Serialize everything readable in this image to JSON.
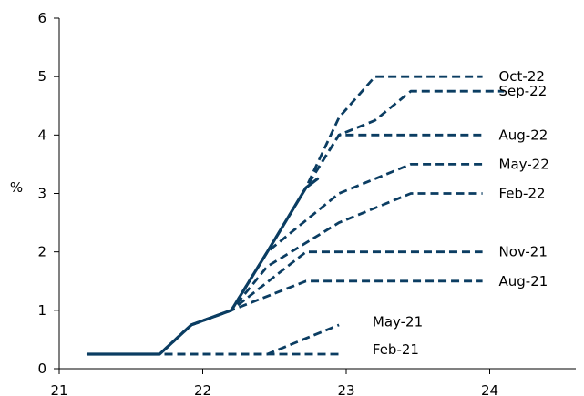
{
  "chart_data": {
    "type": "line",
    "title": "",
    "xlabel": "",
    "ylabel": "%",
    "xlim": [
      21,
      24.6
    ],
    "ylim": [
      0,
      6
    ],
    "x_ticks": [
      21,
      22,
      23,
      24
    ],
    "x_tick_labels": [
      "21",
      "22",
      "23",
      "24"
    ],
    "y_ticks": [
      0,
      1,
      2,
      3,
      4,
      5,
      6
    ],
    "y_tick_labels": [
      "0",
      "1",
      "2",
      "3",
      "4",
      "5",
      "6"
    ],
    "grid": false,
    "colors": {
      "line": "#0b3d62"
    },
    "actual": {
      "x": [
        21.2,
        21.7,
        21.92,
        22.2,
        22.45,
        22.72,
        22.8
      ],
      "y": [
        0.25,
        0.25,
        0.75,
        1.0,
        2.0,
        3.1,
        3.25
      ]
    },
    "series": [
      {
        "name": "Feb-21",
        "x": [
          21.2,
          22.95
        ],
        "y": [
          0.25,
          0.25
        ]
      },
      {
        "name": "May-21",
        "x": [
          21.2,
          22.45,
          22.95
        ],
        "y": [
          0.25,
          0.25,
          0.75
        ]
      },
      {
        "name": "Aug-21",
        "x": [
          21.2,
          21.7,
          21.92,
          22.2,
          22.72,
          23.95
        ],
        "y": [
          0.25,
          0.25,
          0.75,
          1.0,
          1.5,
          1.5
        ]
      },
      {
        "name": "Nov-21",
        "x": [
          21.2,
          21.7,
          21.92,
          22.2,
          22.72,
          23.95
        ],
        "y": [
          0.25,
          0.25,
          0.75,
          1.0,
          2.0,
          2.0
        ]
      },
      {
        "name": "Feb-22",
        "x": [
          21.2,
          21.7,
          21.92,
          22.2,
          22.45,
          22.95,
          23.45,
          23.95
        ],
        "y": [
          0.25,
          0.25,
          0.75,
          1.0,
          1.75,
          2.5,
          3.0,
          3.0
        ]
      },
      {
        "name": "May-22",
        "x": [
          21.2,
          21.7,
          21.92,
          22.2,
          22.45,
          22.95,
          23.45,
          23.95
        ],
        "y": [
          0.25,
          0.25,
          0.75,
          1.0,
          2.0,
          3.0,
          3.5,
          3.5
        ]
      },
      {
        "name": "Aug-22",
        "x": [
          21.2,
          21.7,
          21.92,
          22.2,
          22.45,
          22.72,
          22.95,
          23.95
        ],
        "y": [
          0.25,
          0.25,
          0.75,
          1.0,
          2.0,
          3.1,
          4.0,
          4.0
        ]
      },
      {
        "name": "Sep-22",
        "x": [
          21.2,
          21.7,
          21.92,
          22.2,
          22.45,
          22.72,
          22.95,
          23.2,
          23.45,
          24.1
        ],
        "y": [
          0.25,
          0.25,
          0.75,
          1.0,
          2.0,
          3.1,
          4.0,
          4.25,
          4.75,
          4.75
        ]
      },
      {
        "name": "Oct-22",
        "x": [
          21.2,
          21.7,
          21.92,
          22.2,
          22.45,
          22.72,
          22.95,
          23.2,
          23.95
        ],
        "y": [
          0.25,
          0.25,
          0.75,
          1.0,
          2.0,
          3.1,
          4.3,
          5.0,
          5.0
        ]
      }
    ],
    "series_labels": [
      {
        "name": "Oct-22",
        "x": 24.0,
        "y": 5.0
      },
      {
        "name": "Sep-22",
        "x": 24.0,
        "y": 4.75
      },
      {
        "name": "Aug-22",
        "x": 24.0,
        "y": 4.0
      },
      {
        "name": "May-22",
        "x": 24.0,
        "y": 3.5
      },
      {
        "name": "Feb-22",
        "x": 24.0,
        "y": 3.0
      },
      {
        "name": "Nov-21",
        "x": 24.0,
        "y": 2.0
      },
      {
        "name": "Aug-21",
        "x": 24.0,
        "y": 1.5
      },
      {
        "name": "May-21",
        "x": 23.12,
        "y": 0.8
      },
      {
        "name": "Feb-21",
        "x": 23.12,
        "y": 0.33
      }
    ]
  }
}
